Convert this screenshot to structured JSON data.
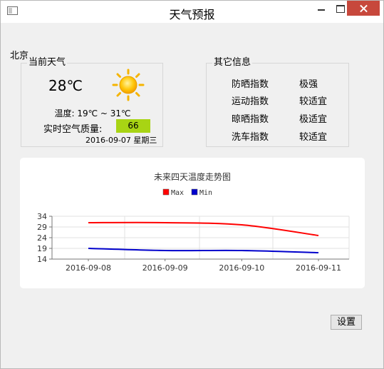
{
  "window": {
    "title": "天气预报",
    "icons": {
      "app": "app-window-icon",
      "minimize": "minimize-icon",
      "maximize": "maximize-icon",
      "close": "close-icon"
    }
  },
  "city": "北京",
  "current": {
    "group_title": "当前天气",
    "temperature": "28℃",
    "weather_icon": "sun-icon",
    "temp_range": "温度: 19℃ ~ 31℃",
    "aqi_label": "实时空气质量:",
    "aqi_value": "66",
    "aqi_color": "#a8d414",
    "date": "2016-09-07 星期三"
  },
  "other": {
    "group_title": "其它信息",
    "items": [
      {
        "name": "防晒指数",
        "value": "极强"
      },
      {
        "name": "运动指数",
        "value": "较适宜"
      },
      {
        "name": "晾晒指数",
        "value": "极适宜"
      },
      {
        "name": "洗车指数",
        "value": "较适宜"
      }
    ]
  },
  "chart_data": {
    "type": "line",
    "title": "未来四天温度走势图",
    "categories": [
      "2016-09-08",
      "2016-09-09",
      "2016-09-10",
      "2016-09-11"
    ],
    "series": [
      {
        "name": "Max",
        "color": "#ff0000",
        "values": [
          31,
          31,
          30,
          25
        ]
      },
      {
        "name": "Min",
        "color": "#0000cc",
        "values": [
          19,
          18,
          18,
          17
        ]
      }
    ],
    "yticks": [
      14,
      19,
      24,
      29,
      34
    ],
    "ylim": [
      14,
      34
    ],
    "grid": true,
    "legend": "top"
  },
  "settings_label": "设置"
}
